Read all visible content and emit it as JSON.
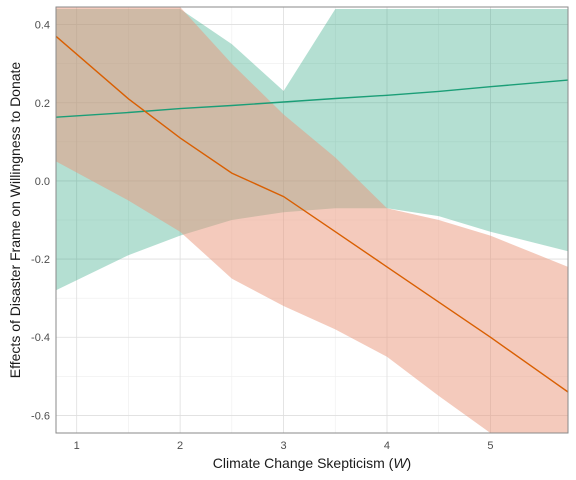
{
  "chart_data": {
    "type": "line",
    "title": "",
    "xlabel_prefix": "Climate Change Skepticism (",
    "xlabel_var": "W",
    "xlabel_suffix": ")",
    "ylabel": "Effects of Disaster Frame on Willingness to Donate",
    "xlim": [
      0.8,
      5.75
    ],
    "ylim": [
      -0.645,
      0.445
    ],
    "x_ticks": [
      1,
      2,
      3,
      4,
      5
    ],
    "y_ticks": [
      -0.6,
      -0.4,
      -0.2,
      0.0,
      0.2,
      0.4
    ],
    "y_tick_labels": [
      "-0.6",
      "-0.4",
      "-0.2",
      "0.0",
      "0.2",
      "0.4"
    ],
    "grid": true,
    "series": [
      {
        "color": "#1b9e77",
        "band_color": "#1b9e77",
        "x": [
          0.8,
          1.5,
          2.0,
          2.5,
          3.0,
          3.5,
          4.0,
          4.5,
          5.0,
          5.75
        ],
        "y": [
          0.163,
          0.175,
          0.185,
          0.193,
          0.202,
          0.211,
          0.219,
          0.229,
          0.241,
          0.258
        ],
        "lower": [
          -0.28,
          -0.19,
          -0.14,
          -0.1,
          -0.08,
          -0.07,
          -0.07,
          -0.09,
          -0.13,
          -0.18
        ],
        "upper": [
          0.44,
          0.44,
          0.44,
          0.35,
          0.23,
          0.44,
          0.44,
          0.44,
          0.44,
          0.44
        ]
      },
      {
        "color": "#d95f02",
        "band_color": "#e9967a",
        "x": [
          0.8,
          1.5,
          2.0,
          2.5,
          3.0,
          3.5,
          4.0,
          4.5,
          5.0,
          5.75
        ],
        "y": [
          0.37,
          0.21,
          0.11,
          0.02,
          -0.04,
          -0.13,
          -0.22,
          -0.31,
          -0.4,
          -0.54
        ],
        "lower": [
          0.05,
          -0.05,
          -0.13,
          -0.25,
          -0.32,
          -0.38,
          -0.45,
          -0.55,
          -0.645,
          -0.645
        ],
        "upper": [
          0.445,
          0.445,
          0.445,
          0.3,
          0.17,
          0.06,
          -0.07,
          -0.1,
          -0.14,
          -0.22
        ]
      }
    ]
  }
}
